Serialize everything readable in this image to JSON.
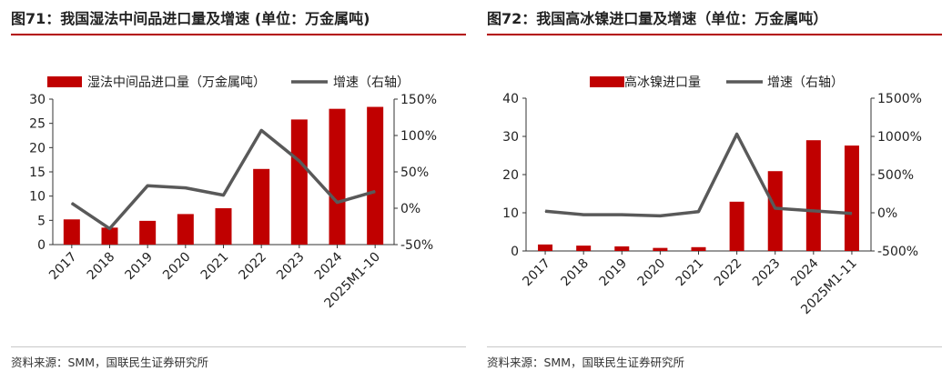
{
  "charts": [
    {
      "figure_title": "图71：我国湿法中间品进口量及增速 (单位：万金属吨)",
      "source": "资料来源：SMM，国联民生证券研究所",
      "chart_data": {
        "type": "bar",
        "categories": [
          "2017",
          "2018",
          "2019",
          "2020",
          "2021",
          "2022",
          "2023",
          "2024",
          "2025M1-10"
        ],
        "series": [
          {
            "name": "湿法中间品进口量（万金属吨）",
            "kind": "bar",
            "axis": "left",
            "color": "#c00000",
            "values": [
              5.2,
              3.5,
              4.9,
              6.3,
              7.5,
              15.6,
              25.8,
              28.0,
              28.4
            ]
          },
          {
            "name": "增速（右轴）",
            "kind": "line",
            "axis": "right",
            "color": "#595959",
            "values": [
              7,
              -28,
              31,
              28,
              18,
              107,
              65,
              8,
              23
            ]
          }
        ],
        "ylim_left": [
          0,
          30
        ],
        "yticks_left": [
          "0",
          "5",
          "10",
          "15",
          "20",
          "25",
          "30"
        ],
        "yticks_left_values": [
          0,
          5,
          10,
          15,
          20,
          25,
          30
        ],
        "ylim_right": [
          -50,
          150
        ],
        "yticks_right": [
          "-50%",
          "0%",
          "50%",
          "100%",
          "150%"
        ],
        "yticks_right_values": [
          -50,
          0,
          50,
          100,
          150
        ],
        "legend": "top"
      }
    },
    {
      "figure_title": "图72：我国高冰镍进口量及增速（单位：万金属吨）",
      "source": "资料来源：SMM，国联民生证券研究所",
      "chart_data": {
        "type": "bar",
        "categories": [
          "2017",
          "2018",
          "2019",
          "2020",
          "2021",
          "2022",
          "2023",
          "2024",
          "2025M1-11"
        ],
        "series": [
          {
            "name": "高冰镍进口量",
            "kind": "bar",
            "axis": "left",
            "color": "#c00000",
            "values": [
              1.7,
              1.4,
              1.2,
              0.8,
              1.0,
              12.9,
              20.9,
              29.0,
              27.6
            ]
          },
          {
            "name": "增速（右轴）",
            "kind": "line",
            "axis": "right",
            "color": "#595959",
            "values": [
              20,
              -25,
              -25,
              -40,
              15,
              1030,
              60,
              25,
              -10
            ]
          }
        ],
        "ylim_left": [
          0,
          40
        ],
        "yticks_left": [
          "0",
          "10",
          "20",
          "30",
          "40"
        ],
        "yticks_left_values": [
          0,
          10,
          20,
          30,
          40
        ],
        "ylim_right": [
          -500,
          1500
        ],
        "yticks_right": [
          "-500%",
          "0%",
          "500%",
          "1000%",
          "1500%"
        ],
        "yticks_right_values": [
          -500,
          0,
          500,
          1000,
          1500
        ],
        "legend": "top"
      }
    }
  ]
}
